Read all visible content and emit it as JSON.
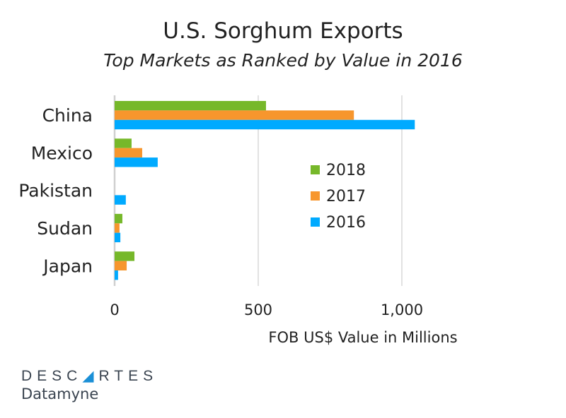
{
  "chart_data": {
    "type": "bar",
    "orientation": "horizontal",
    "title": "U.S. Sorghum Exports",
    "subtitle": "Top Markets as Ranked by Value in 2016",
    "xlabel": "FOB US$ Value in Millions",
    "ylabel": "",
    "categories": [
      "China",
      "Mexico",
      "Pakistan",
      "Sudan",
      "Japan"
    ],
    "series": [
      {
        "name": "2018",
        "color": "#76b82a",
        "values": [
          527,
          59,
          0,
          27,
          69
        ]
      },
      {
        "name": "2017",
        "color": "#f7962d",
        "values": [
          833,
          96,
          0,
          17,
          42
        ]
      },
      {
        "name": "2016",
        "color": "#00aaff",
        "values": [
          1045,
          150,
          39,
          20,
          12
        ]
      }
    ],
    "xlim": [
      0,
      1000
    ],
    "xticks": [
      0,
      500,
      1000
    ],
    "xtick_labels": [
      "0",
      "500",
      "1,000"
    ],
    "grid": true,
    "legend_position": "center-right"
  },
  "branding": {
    "logo_top": "DESCARTES",
    "logo_bottom": "Datamyne"
  }
}
